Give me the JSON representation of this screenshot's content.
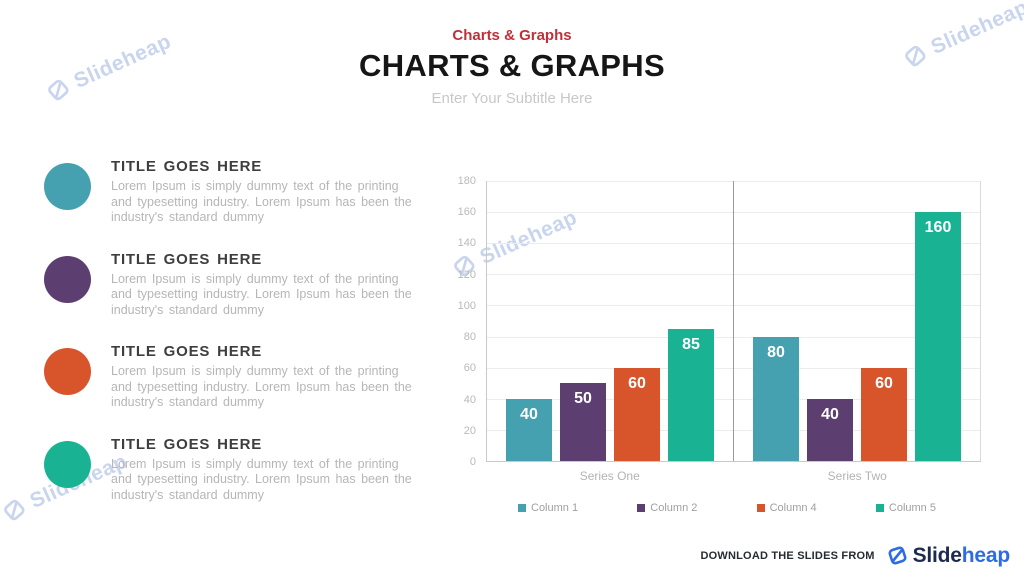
{
  "header": {
    "eyebrow": "Charts & Graphs",
    "title": "CHARTS & GRAPHS",
    "subtitle": "Enter Your Subtitle Here",
    "eyebrow_color": "#c13039"
  },
  "items": [
    {
      "title": "TITLE GOES HERE",
      "color": "#45A0AF",
      "body": "Lorem Ipsum is simply dummy text of the printing and typesetting industry. Lorem Ipsum has been the industry's standard dummy"
    },
    {
      "title": "TITLE GOES HERE",
      "color": "#5C3E71",
      "body": "Lorem Ipsum is simply dummy text of the printing and typesetting industry. Lorem Ipsum has been the industry's standard dummy"
    },
    {
      "title": "TITLE GOES HERE",
      "color": "#D8552C",
      "body": "Lorem Ipsum is simply dummy text of the printing and typesetting industry. Lorem Ipsum has been the industry's standard dummy"
    },
    {
      "title": "TITLE GOES HERE",
      "color": "#19B394",
      "body": "Lorem Ipsum is simply dummy text of the printing and typesetting industry. Lorem Ipsum has been the industry's standard dummy"
    }
  ],
  "chart_data": {
    "type": "bar",
    "categories": [
      "Series One",
      "Series Two"
    ],
    "series": [
      {
        "name": "Column 1",
        "color": "#45A0AF",
        "values": [
          40,
          80
        ]
      },
      {
        "name": "Column 2",
        "color": "#5C3E71",
        "values": [
          50,
          40
        ]
      },
      {
        "name": "Column 4",
        "color": "#D8552C",
        "values": [
          60,
          60
        ]
      },
      {
        "name": "Column 5",
        "color": "#19B394",
        "values": [
          85,
          160
        ]
      }
    ],
    "title": "",
    "xlabel": "",
    "ylabel": "",
    "ylim": [
      0,
      180
    ],
    "ytick_step": 20,
    "grid": true,
    "legend_position": "bottom",
    "bar_value_labels": true
  },
  "watermark": {
    "text": "Slideheap",
    "color": "#c9d5ee"
  },
  "footer": {
    "download_label": "DOWNLOAD THE SLIDES FROM",
    "brand_primary": "Slide",
    "brand_secondary": "heap",
    "brand_primary_color": "#1d2b50",
    "brand_secondary_color": "#2e6ce2"
  }
}
